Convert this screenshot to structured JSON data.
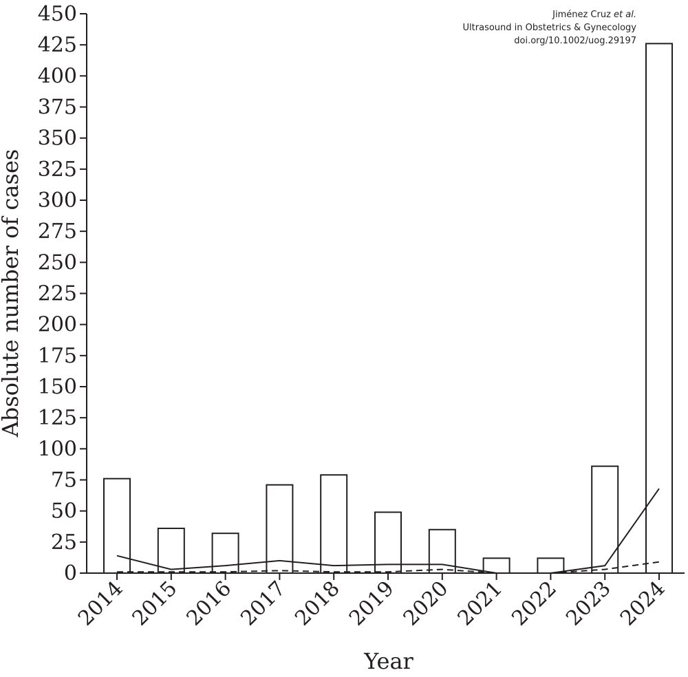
{
  "citation": {
    "line1_author": "Jiménez Cruz ",
    "line1_etal": "et al.",
    "line2": "Ultrasound in Obstetrics & Gynecology",
    "line3": "doi.org/10.1002/uog.29197"
  },
  "chart_data": {
    "type": "bar",
    "xlabel": "Year",
    "ylabel": "Absolute number of cases",
    "ylim": [
      0,
      450
    ],
    "yticks": [
      0,
      25,
      50,
      75,
      100,
      125,
      150,
      175,
      200,
      225,
      250,
      275,
      300,
      325,
      350,
      375,
      400,
      425,
      450
    ],
    "categories": [
      "2014",
      "2015",
      "2016",
      "2017",
      "2018",
      "2019",
      "2020",
      "2021",
      "2022",
      "2023",
      "2024"
    ],
    "bar_values": [
      76,
      36,
      32,
      71,
      79,
      49,
      35,
      12,
      12,
      86,
      426
    ],
    "lines": [
      {
        "style": "solid",
        "values": [
          14,
          3,
          6,
          10,
          6,
          7,
          7,
          0,
          0,
          6,
          68
        ]
      },
      {
        "style": "dashed",
        "values": [
          1,
          1,
          1,
          2,
          1,
          1,
          3,
          0,
          0,
          3,
          9
        ]
      }
    ],
    "grid": false,
    "legend": "none",
    "colors": {
      "ink": "#231f20",
      "bar_fill": "#ffffff"
    }
  }
}
